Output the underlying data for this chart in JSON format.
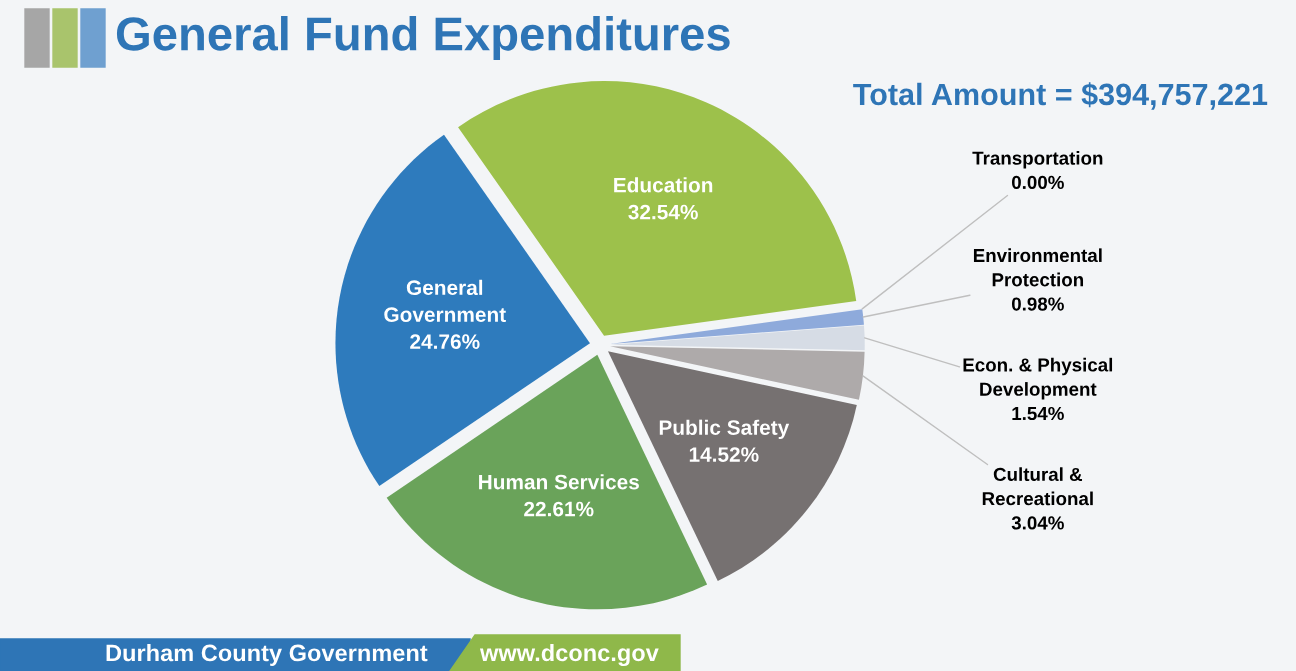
{
  "chart_data": {
    "type": "pie",
    "title": "General Fund Expenditures",
    "categories": [
      "Education",
      "Transportation",
      "Environmental\nProtection",
      "Econ. & Physical\nDevelopment",
      "Cultural &\nRecreational",
      "Public Safety",
      "Human Services",
      "General\nGovernment"
    ],
    "values": [
      32.54,
      0.0,
      0.98,
      1.54,
      3.04,
      14.52,
      22.61,
      24.76
    ],
    "value_labels": [
      "32.54%",
      "0.00%",
      "0.98%",
      "1.54%",
      "3.04%",
      "14.52%",
      "22.61%",
      "24.76%"
    ],
    "colors": [
      "#9dc14b",
      "#4472c4",
      "#8eaadb",
      "#d6dce5",
      "#aeaaaa",
      "#767171",
      "#6aa35a",
      "#2e7bbd"
    ],
    "annotations": [
      "Total Amount = $394,757,221",
      "Durham County Government",
      "www.dconc.gov"
    ],
    "legend": false
  }
}
